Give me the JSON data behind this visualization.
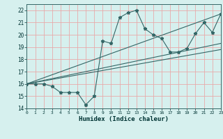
{
  "title": "",
  "xlabel": "Humidex (Indice chaleur)",
  "xlim": [
    0,
    23
  ],
  "ylim": [
    14,
    22.5
  ],
  "xticks": [
    0,
    1,
    2,
    3,
    4,
    5,
    6,
    7,
    8,
    9,
    10,
    11,
    12,
    13,
    14,
    15,
    16,
    17,
    18,
    19,
    20,
    21,
    22,
    23
  ],
  "yticks": [
    14,
    15,
    16,
    17,
    18,
    19,
    20,
    21,
    22
  ],
  "bg_color": "#d6f0ee",
  "grid_color": "#e8aaaa",
  "line_color": "#336666",
  "data_x": [
    0,
    1,
    2,
    3,
    4,
    5,
    6,
    7,
    8,
    9,
    10,
    11,
    12,
    13,
    14,
    15,
    16,
    17,
    18,
    19,
    20,
    21,
    22,
    23
  ],
  "data_y": [
    16.0,
    16.0,
    16.0,
    15.8,
    15.3,
    15.3,
    15.3,
    14.3,
    15.0,
    19.5,
    19.3,
    21.4,
    21.8,
    22.0,
    20.5,
    20.0,
    19.7,
    18.6,
    18.6,
    18.9,
    20.1,
    21.0,
    20.2,
    21.7
  ],
  "trend1_x": [
    0,
    23
  ],
  "trend1_y": [
    16.0,
    18.8
  ],
  "trend2_x": [
    0,
    23
  ],
  "trend2_y": [
    16.0,
    19.3
  ],
  "trend3_x": [
    0,
    23
  ],
  "trend3_y": [
    16.0,
    21.7
  ]
}
